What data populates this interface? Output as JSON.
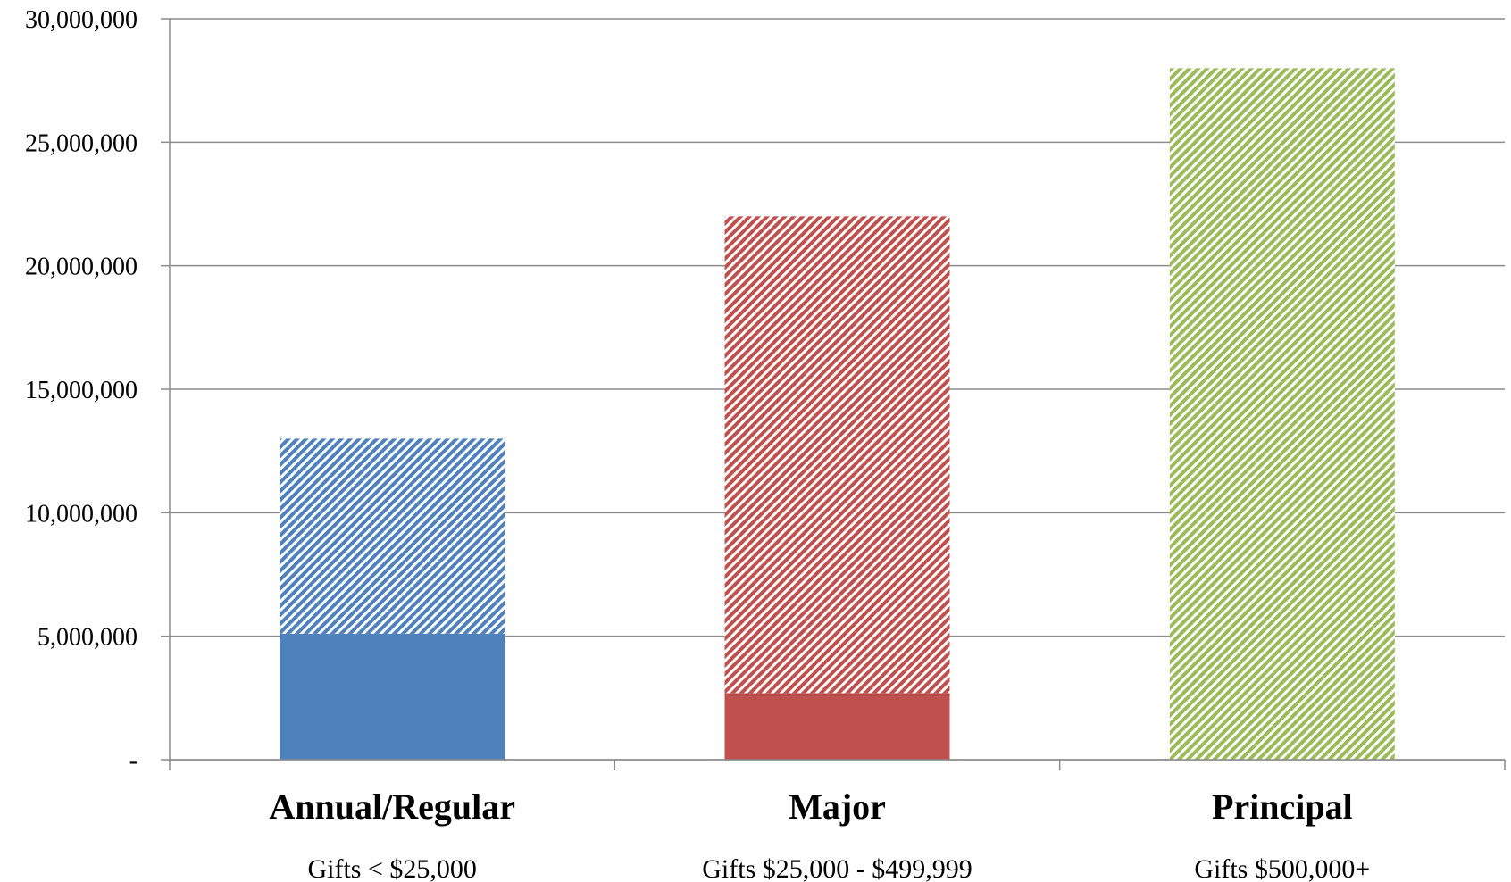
{
  "chart_data": {
    "type": "bar",
    "stacked": true,
    "title": "",
    "xlabel": "",
    "ylabel": "",
    "ylim": [
      0,
      30000000
    ],
    "grid": true,
    "legend": "none",
    "y_ticks": [
      "-",
      "5,000,000",
      "10,000,000",
      "15,000,000",
      "20,000,000",
      "25,000,000",
      "30,000,000"
    ],
    "y_tick_values": [
      0,
      5000000,
      10000000,
      15000000,
      20000000,
      25000000,
      30000000
    ],
    "categories": [
      "Annual/Regular",
      "Major",
      "Principal"
    ],
    "category_sublabels": [
      "Gifts < $25,000",
      "Gifts $25,000 - $499,999",
      "Gifts $500,000+"
    ],
    "colors": [
      "#4F81BD",
      "#C0504D",
      "#9BBB59"
    ],
    "series": [
      {
        "style": "solid",
        "values": [
          5100000,
          2700000,
          0
        ]
      },
      {
        "style": "hatched",
        "values": [
          7900000,
          19300000,
          28000000
        ]
      }
    ]
  }
}
